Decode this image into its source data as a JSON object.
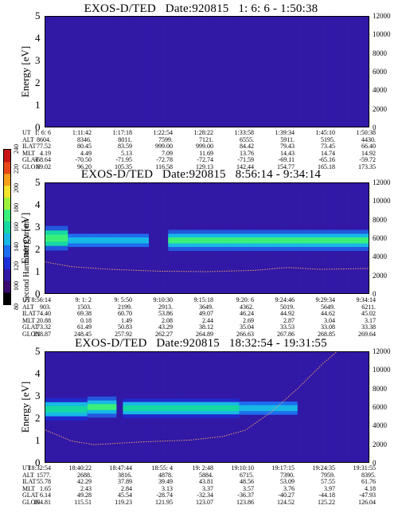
{
  "colorbar": {
    "label": "Second Harmonic Current",
    "ticks": [
      "80",
      "100",
      "120",
      "140",
      "160",
      "180",
      "200",
      "220",
      "240"
    ],
    "colors": [
      "#000000",
      "#3a0a6e",
      "#3218a6",
      "#1c2fd8",
      "#1d6ef0",
      "#18b8e6",
      "#16d8a2",
      "#3af07a",
      "#9cf23a",
      "#f2e42a",
      "#f4a01c",
      "#e8461a",
      "#c81414"
    ]
  },
  "panels": [
    {
      "id": "p1",
      "title": "EXOS-D/TED   Date:920815   1: 6: 6 - 1:50:38",
      "ylabel_left": "Energy [eV]",
      "ylabel_right": "Temperature [K]",
      "left_ticks": [
        "0",
        "1",
        "2",
        "3",
        "4",
        "5"
      ],
      "right_ticks": [
        "0",
        "2000",
        "4000",
        "6000",
        "8000",
        "10000",
        "12000"
      ],
      "ephemeris": {
        "names": [
          "UT",
          "ALT",
          "ILAT",
          "MLT",
          "GLAT",
          "GLON"
        ],
        "rows": [
          [
            "1: 6: 6",
            "1:11:42",
            "1:17:18",
            "1:22:54",
            "1:28:22",
            "1:33:58",
            "1:39:34",
            "1:45:10",
            "1:50:38"
          ],
          [
            "8604.",
            "8346.",
            "8011.",
            "7599.",
            "7121.",
            "6555.",
            "5911.",
            "5195.",
            "4430."
          ],
          [
            "77.52",
            "80.45",
            "83.59",
            "999.00",
            "999.00",
            "84.42",
            "79.43",
            "73.45",
            "66.40"
          ],
          [
            "4.19",
            "4.49",
            "5.13",
            "7.09",
            "11.69",
            "13.76",
            "14.43",
            "14.74",
            "14.92"
          ],
          [
            "-68.64",
            "-70.50",
            "-71.95",
            "-72.78",
            "-72.74",
            "-71.59",
            "-69.11",
            "-65.16",
            "-59.72"
          ],
          [
            "89.02",
            "96.20",
            "105.35",
            "116.58",
            "129.13",
            "142.44",
            "154.77",
            "165.18",
            "173.35"
          ]
        ]
      },
      "chart_data": {
        "type": "heatmap",
        "title": "EXOS-D/TED   Date:920815   1: 6: 6 - 1:50:38",
        "ylabel": "Energy [eV]",
        "y2label": "Temperature [K]",
        "ylim": [
          0,
          5
        ],
        "y2lim": [
          0,
          12000
        ],
        "x_ticks": [
          "1: 6: 6",
          "1:11:42",
          "1:17:18",
          "1:22:54",
          "1:28:22",
          "1:33:58",
          "1:39:34",
          "1:45:10",
          "1:50:38"
        ],
        "background_level": 105,
        "bands": [],
        "temperature": []
      }
    },
    {
      "id": "p2",
      "title": "EXOS-D/TED   Date:920815   8:56:14 - 9:34:14",
      "ylabel_left": "Energy [eV]",
      "ylabel_right": "Temperature [K]",
      "left_ticks": [
        "0",
        "1",
        "2",
        "3",
        "4",
        "5"
      ],
      "right_ticks": [
        "0",
        "2000",
        "4000",
        "6000",
        "8000",
        "10000",
        "12000"
      ],
      "ephemeris": {
        "names": [
          "UT",
          "ALT",
          "ILAT",
          "MLT",
          "GLAT",
          "GLON"
        ],
        "rows": [
          [
            "8:56:14",
            "9: 1: 2",
            "9: 5:50",
            "9:10:30",
            "9:15:18",
            "9:20: 6",
            "9:24:46",
            "9:29:34",
            "9:34:14"
          ],
          [
            "903.",
            "1503.",
            "2199.",
            "2913.",
            "3649.",
            "4362.",
            "5019.",
            "5649.",
            "6211."
          ],
          [
            "74.40",
            "69.38",
            "60.70",
            "53.86",
            "49.07",
            "46.24",
            "44.92",
            "44.62",
            "45.02"
          ],
          [
            "20.88",
            "0.18",
            "1.49",
            "2.08",
            "2.44",
            "2.69",
            "2.87",
            "3.04",
            "3.17"
          ],
          [
            "73.32",
            "61.49",
            "50.83",
            "43.29",
            "38.12",
            "35.04",
            "33.53",
            "33.08",
            "33.38"
          ],
          [
            "218.87",
            "248.45",
            "257.92",
            "262.27",
            "264.89",
            "266.63",
            "267.86",
            "268.85",
            "269.64"
          ]
        ]
      },
      "chart_data": {
        "type": "heatmap",
        "title": "EXOS-D/TED   Date:920815   8:56:14 - 9:34:14",
        "ylabel": "Energy [eV]",
        "y2label": "Temperature [K]",
        "ylim": [
          0,
          5
        ],
        "y2lim": [
          0,
          12000
        ],
        "x_ticks": [
          "8:56:14",
          "9: 1: 2",
          "9: 5:50",
          "9:10:30",
          "9:15:18",
          "9:20: 6",
          "9:24:46",
          "9:29:34",
          "9:34:14"
        ],
        "background_level": 110,
        "bands": [
          {
            "x0": 0.0,
            "x1": 0.07,
            "energy": 2.5,
            "width": 0.35,
            "level": 170
          },
          {
            "x0": 0.07,
            "x1": 0.32,
            "energy": 2.4,
            "width": 0.3,
            "level": 145
          },
          {
            "x0": 0.38,
            "x1": 1.0,
            "energy": 2.4,
            "width": 0.3,
            "level": 168
          }
        ],
        "temperature": [
          [
            0.0,
            3400
          ],
          [
            0.08,
            2900
          ],
          [
            0.2,
            2600
          ],
          [
            0.35,
            2400
          ],
          [
            0.5,
            2350
          ],
          [
            0.65,
            2500
          ],
          [
            0.75,
            2800
          ],
          [
            0.85,
            2600
          ],
          [
            1.0,
            2700
          ]
        ]
      }
    },
    {
      "id": "p3",
      "title": "EXOS-D/TED   Date:920815   18:32:54 - 19:31:55",
      "ylabel_left": "Energy [eV]",
      "ylabel_right": "Temperature [K]",
      "left_ticks": [
        "0",
        "1",
        "2",
        "3",
        "4",
        "5"
      ],
      "right_ticks": [
        "0",
        "2000",
        "4000",
        "6000",
        "8000",
        "10000",
        "12000"
      ],
      "ephemeris": {
        "names": [
          "UT",
          "ALT",
          "ILAT",
          "MLT",
          "GLAT",
          "GLON"
        ],
        "rows": [
          [
            "18:32:54",
            "18:40:22",
            "18:47:44",
            "18:55: 4",
            "19: 2:48",
            "19:10:10",
            "19:17:15",
            "19:24:35",
            "19:31:55"
          ],
          [
            "1577.",
            "2688.",
            "3816.",
            "4878.",
            "5884.",
            "6715.",
            "7390.",
            "7959.",
            "8395."
          ],
          [
            "55.78",
            "42.29",
            "37.89",
            "39.49",
            "43.81",
            "48.56",
            "53.09",
            "57.55",
            "61.76"
          ],
          [
            "1.65",
            "2.43",
            "2.84",
            "3.13",
            "3.37",
            "3.57",
            "3.76",
            "3.97",
            "4.18"
          ],
          [
            "6.14",
            "49.28",
            "45.54",
            "-28.74",
            "-32.34",
            "-36.37",
            "-40.27",
            "-44.18",
            "-47.93"
          ],
          [
            "104.81",
            "115.51",
            "119.23",
            "121.95",
            "123.07",
            "123.86",
            "124.52",
            "125.22",
            "126.04"
          ]
        ]
      },
      "chart_data": {
        "type": "heatmap",
        "title": "EXOS-D/TED   Date:920815   18:32:54 - 19:31:55",
        "ylabel": "Energy [eV]",
        "y2label": "Temperature [K]",
        "ylim": [
          0,
          5
        ],
        "y2lim": [
          0,
          12000
        ],
        "x_ticks": [
          "18:32:54",
          "18:40:22",
          "18:47:44",
          "18:55: 4",
          "19: 2:48",
          "19:10:10",
          "19:17:15",
          "19:24:35",
          "19:31:55"
        ],
        "background_level": 108,
        "bands": [
          {
            "x0": 0.0,
            "x1": 0.13,
            "energy": 2.4,
            "width": 0.32,
            "level": 162
          },
          {
            "x0": 0.13,
            "x1": 0.22,
            "energy": 2.5,
            "width": 0.3,
            "level": 168
          },
          {
            "x0": 0.24,
            "x1": 0.6,
            "energy": 2.45,
            "width": 0.28,
            "level": 165
          },
          {
            "x0": 0.6,
            "x1": 0.78,
            "energy": 2.45,
            "width": 0.3,
            "level": 150
          }
        ],
        "temperature": [
          [
            0.0,
            3500
          ],
          [
            0.08,
            2300
          ],
          [
            0.15,
            1900
          ],
          [
            0.3,
            2200
          ],
          [
            0.45,
            2400
          ],
          [
            0.55,
            2800
          ],
          [
            0.62,
            3500
          ],
          [
            0.7,
            5500
          ],
          [
            0.78,
            8000
          ],
          [
            0.86,
            10800
          ],
          [
            0.9,
            12000
          ]
        ]
      }
    }
  ]
}
